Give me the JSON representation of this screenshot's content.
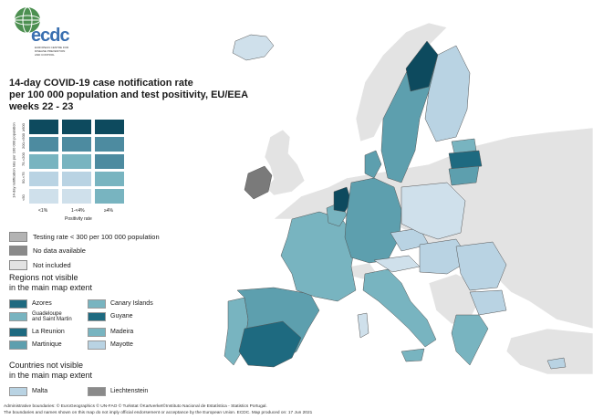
{
  "logo": {
    "text": "ecdc",
    "subtitle": "EUROPEAN CENTRE FOR DISEASE PREVENTION AND CONTROL"
  },
  "title": {
    "line1": "14-day COVID-19 case notification rate",
    "line2": "per 100 000 population and test positivity, EU/EEA",
    "line3": "weeks 22 - 23"
  },
  "matrix": {
    "y_title": "14-day notification rate per 100 000 population",
    "y_ticks": [
      "≥500",
      "200-<500",
      "75-<200",
      "50-<75",
      "<50"
    ],
    "x_ticks": [
      "<1%",
      "1-<4%",
      "≥4%"
    ],
    "x_title": "Positivity rate",
    "colors": [
      [
        "#0d4a5e",
        "#0d4a5e",
        "#0d4a5e"
      ],
      [
        "#4d8ba0",
        "#4d8ba0",
        "#4d8ba0"
      ],
      [
        "#78b4c0",
        "#78b4c0",
        "#4d8ba0"
      ],
      [
        "#b9d3e3",
        "#b9d3e3",
        "#78b4c0"
      ],
      [
        "#cfe0eb",
        "#cfe0eb",
        "#78b4c0"
      ]
    ]
  },
  "legend": {
    "testing": "Testing rate < 300 per 100 000 population",
    "no_data": "No data available",
    "not_included": "Not included"
  },
  "regions": {
    "heading1": "Regions not visible",
    "heading2": "in the main map extent",
    "items": [
      {
        "label": "Azores",
        "color": "#1e6a80"
      },
      {
        "label": "Guadeloupe",
        "label2": "and Saint Martin",
        "color": "#78b4c0"
      },
      {
        "label": "La Reunion",
        "color": "#1e6a80"
      },
      {
        "label": "Martinique",
        "color": "#5d9fae"
      },
      {
        "label": "Canary Islands",
        "color": "#78b4c0"
      },
      {
        "label": "Guyane",
        "color": "#1e6a80"
      },
      {
        "label": "Madeira",
        "color": "#78b4c0"
      },
      {
        "label": "Mayotte",
        "color": "#b9d3e3"
      }
    ]
  },
  "countries": {
    "heading1": "Countries not visible",
    "heading2": "in the main map extent",
    "items": [
      {
        "label": "Malta",
        "color": "#b9d3e3"
      },
      {
        "label": "Liechtenstein",
        "color": "#8a8a8a"
      }
    ]
  },
  "footer": {
    "line1": "Administrative boundaries: © EuroGeographics © UN-FAO © Turkstat ©Kartverket©Instituto Nacional de Estatística - Statistics Portugal.",
    "line2": "The boundaries and names shown on this map do not imply official endorsement or acceptance by the European Union. ECDC. Map produced on: 17 Jun 2021"
  }
}
